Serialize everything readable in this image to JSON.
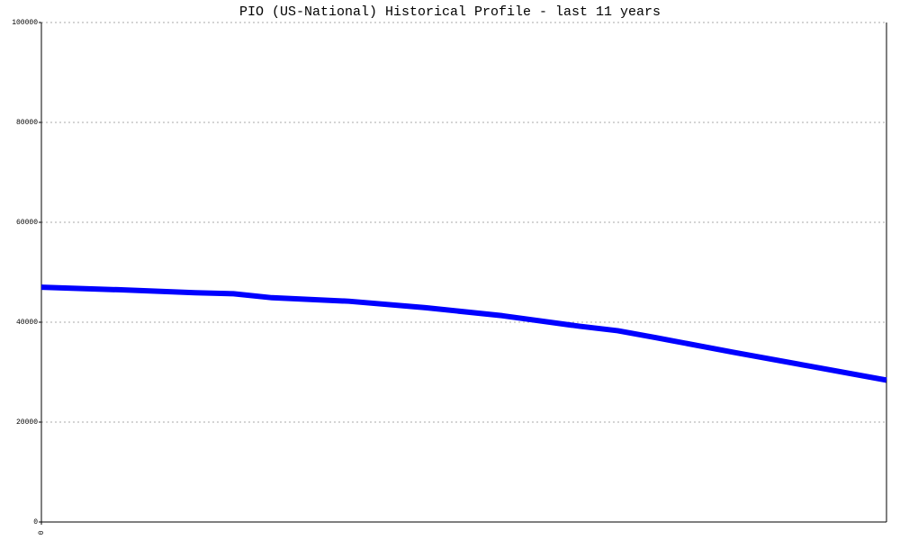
{
  "chart_data": {
    "type": "line",
    "title": "PIO (US-National) Historical Profile - last 11 years",
    "x": [
      0,
      1,
      2,
      2.5,
      3,
      4,
      5,
      6,
      7,
      7.5,
      8,
      9,
      10,
      11
    ],
    "series": [
      {
        "color": "#0000ff",
        "values": [
          47000,
          46500,
          45900,
          45700,
          44900,
          44200,
          42900,
          41300,
          39200,
          38300,
          36900,
          34000,
          31200,
          28400
        ]
      }
    ],
    "xlim": [
      0,
      11
    ],
    "xticks": [
      0
    ],
    "ylim": [
      0,
      100000
    ],
    "yticks": [
      0,
      20000,
      40000,
      60000,
      80000,
      100000
    ],
    "grid": true
  }
}
